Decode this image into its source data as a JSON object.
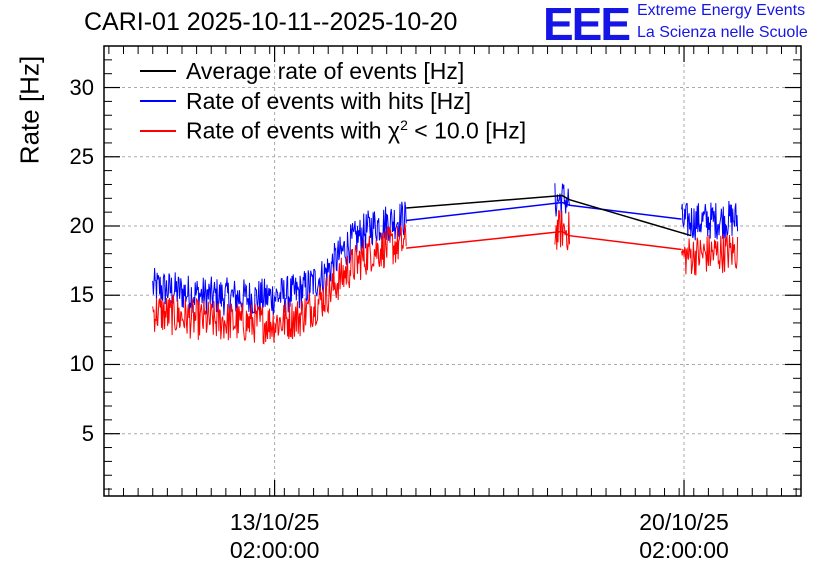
{
  "title": "CARI-01 2025-10-11--2025-10-20",
  "logo": {
    "text": "EEE",
    "line1": "Extreme Energy Events",
    "line2": "La Scienza nelle Scuole",
    "color": "#1515e6"
  },
  "chart_data": {
    "type": "line",
    "ylabel": "Rate [Hz]",
    "ylim": [
      0.5,
      33
    ],
    "yticks": [
      "5",
      "10",
      "15",
      "20",
      "25",
      "30"
    ],
    "x_tick_labels": [
      {
        "date": "13/10/25",
        "time": "02:00:00",
        "x_hours": 50
      },
      {
        "date": "20/10/25",
        "time": "02:00:00",
        "x_hours": 218
      }
    ],
    "xlim_hours": [
      -20,
      266
    ],
    "grid": true,
    "legend": {
      "position": "top-left",
      "entries": [
        {
          "label": "Average rate of events [Hz]",
          "color": "#000000"
        },
        {
          "label": "Rate of events with hits [Hz]",
          "color": "#0000ff"
        },
        {
          "label_prefix": "Rate of events with ",
          "label_chi": "χ",
          "label_sup": "2",
          "label_suffix": " < 10.0 [Hz]",
          "color": "#ff0000"
        }
      ]
    },
    "series": [
      {
        "name": "Average rate of events [Hz]",
        "color": "#000000",
        "x_hours": [
          104,
          168,
          171,
          221
        ],
        "values": [
          21.3,
          22.2,
          21.9,
          19.3
        ]
      },
      {
        "name": "Rate of events with hits [Hz]",
        "color": "#0000ff",
        "noise": 1.4,
        "segments": [
          {
            "x_hours": [
              0,
              20,
              40,
              50,
              60,
              70,
              80,
              90,
              104
            ],
            "values": [
              15.6,
              15.0,
              14.8,
              14.9,
              15.2,
              16.4,
              18.6,
              20.0,
              20.6
            ]
          },
          {
            "x_hours": [
              165,
              168,
              171
            ],
            "values": [
              21.8,
              22.0,
              21.8
            ]
          },
          {
            "x_hours": [
              217,
              240
            ],
            "values": [
              20.3,
              20.5
            ]
          }
        ],
        "connectors": {
          "x_hours": [
            104,
            168,
            171,
            217
          ],
          "values": [
            20.4,
            21.7,
            21.5,
            20.5
          ]
        }
      },
      {
        "name": "Rate of events with chi2 < 10.0 [Hz]",
        "color": "#ff0000",
        "noise": 1.5,
        "segments": [
          {
            "x_hours": [
              0,
              20,
              40,
              50,
              60,
              70,
              80,
              90,
              104
            ],
            "values": [
              13.8,
              13.2,
              13.0,
              13.0,
              13.4,
              14.8,
              16.8,
              18.2,
              18.8
            ]
          },
          {
            "x_hours": [
              165,
              168,
              171
            ],
            "values": [
              19.6,
              19.8,
              19.6
            ]
          },
          {
            "x_hours": [
              217,
              240
            ],
            "values": [
              17.8,
              18.2
            ]
          }
        ],
        "connectors": {
          "x_hours": [
            104,
            168,
            171,
            217
          ],
          "values": [
            18.4,
            19.6,
            19.3,
            18.3
          ]
        }
      }
    ]
  }
}
